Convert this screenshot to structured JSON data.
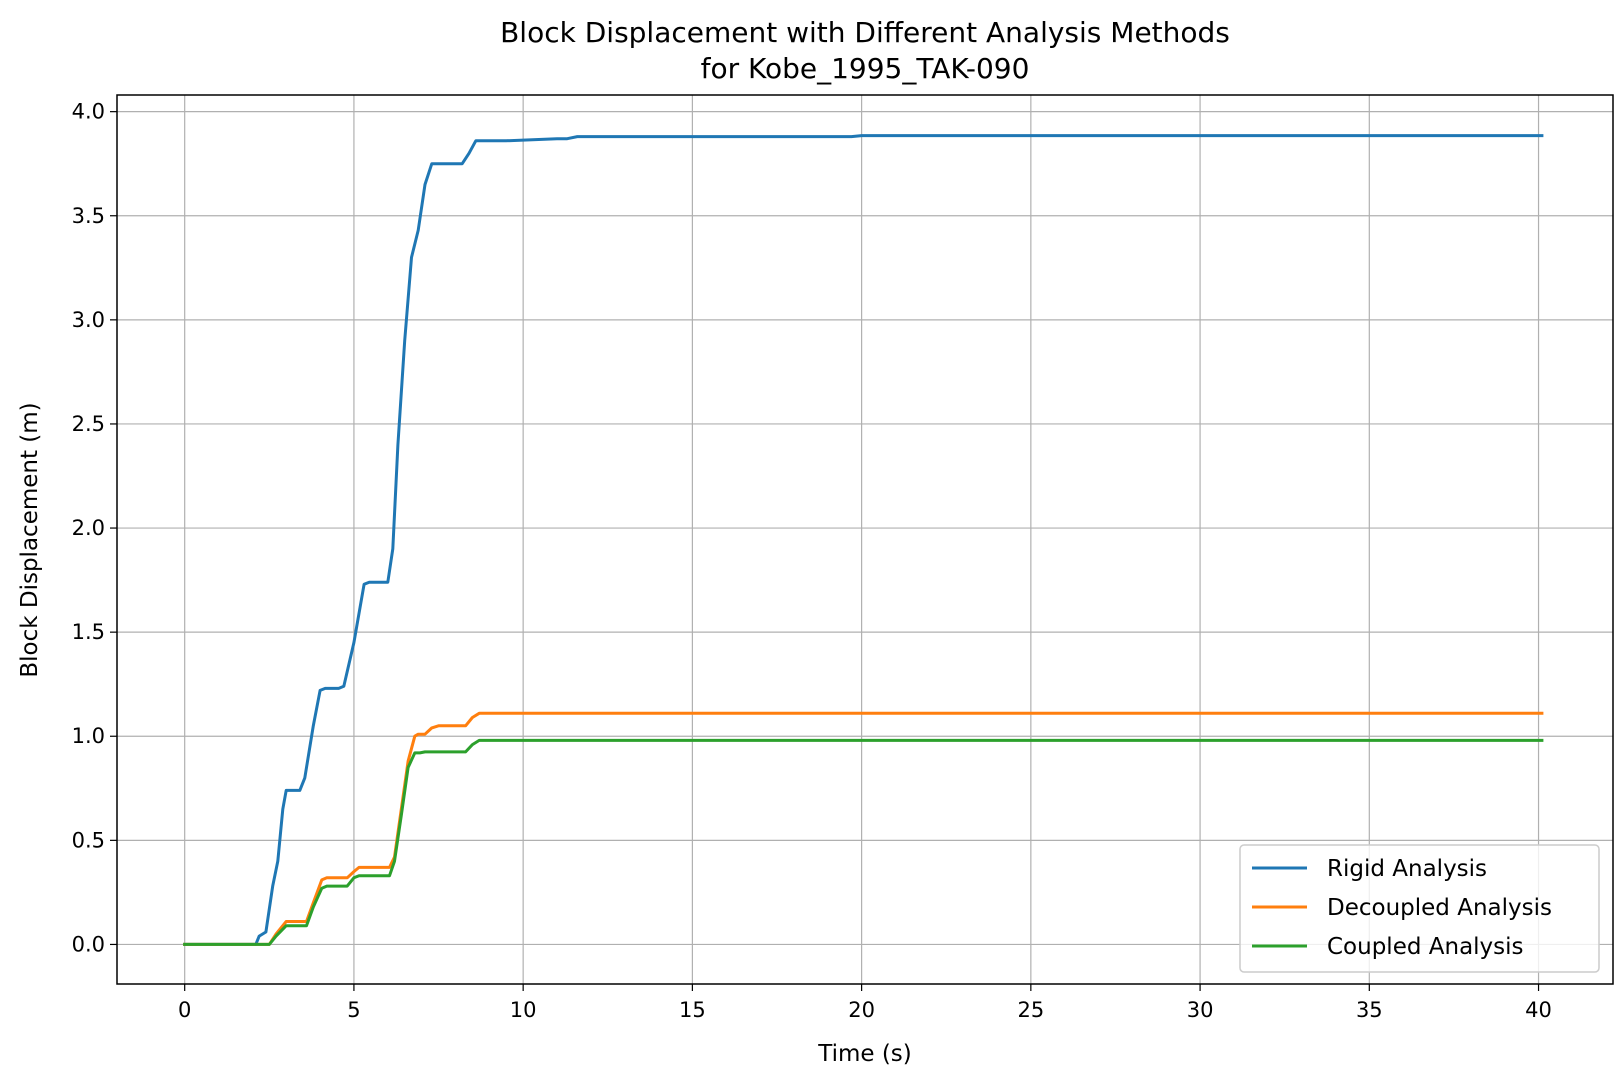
{
  "chart_data": {
    "type": "line",
    "title": "Block Displacement with Different Analysis Methods",
    "subtitle": "for Kobe_1995_TAK-090",
    "xlabel": "Time (s)",
    "ylabel": "Block Displacement (m)",
    "xlim": [
      -2.0,
      42.2
    ],
    "ylim": [
      -0.19,
      4.08
    ],
    "xticks": [
      0,
      5,
      10,
      15,
      20,
      25,
      30,
      35,
      40
    ],
    "xtick_labels": [
      "0",
      "5",
      "10",
      "15",
      "20",
      "25",
      "30",
      "35",
      "40"
    ],
    "yticks": [
      0.0,
      0.5,
      1.0,
      1.5,
      2.0,
      2.5,
      3.0,
      3.5,
      4.0
    ],
    "ytick_labels": [
      "0.0",
      "0.5",
      "1.0",
      "1.5",
      "2.0",
      "2.5",
      "3.0",
      "3.5",
      "4.0"
    ],
    "grid": true,
    "legend_position": "lower-right",
    "series": [
      {
        "name": "Rigid Analysis",
        "color": "#1f77b4",
        "x": [
          0,
          2.1,
          2.2,
          2.4,
          2.6,
          2.75,
          2.9,
          3.0,
          3.1,
          3.4,
          3.55,
          3.8,
          4.0,
          4.15,
          4.55,
          4.7,
          5.0,
          5.3,
          5.45,
          6.0,
          6.15,
          6.3,
          6.5,
          6.7,
          6.9,
          7.1,
          7.3,
          7.5,
          8.2,
          8.4,
          8.6,
          9.5,
          11.0,
          11.3,
          11.6,
          12.5,
          19.7,
          20.0,
          40.1
        ],
        "y": [
          0,
          0,
          0.04,
          0.06,
          0.28,
          0.4,
          0.65,
          0.74,
          0.74,
          0.74,
          0.8,
          1.05,
          1.22,
          1.23,
          1.23,
          1.24,
          1.45,
          1.73,
          1.74,
          1.74,
          1.9,
          2.4,
          2.9,
          3.3,
          3.43,
          3.65,
          3.75,
          3.75,
          3.75,
          3.8,
          3.86,
          3.86,
          3.87,
          3.87,
          3.88,
          3.88,
          3.88,
          3.885,
          3.885
        ]
      },
      {
        "name": "Decoupled Analysis",
        "color": "#ff7f0e",
        "x": [
          0,
          2.5,
          2.7,
          3.0,
          3.6,
          3.8,
          4.05,
          4.2,
          4.8,
          5.0,
          5.15,
          6.05,
          6.2,
          6.4,
          6.6,
          6.8,
          6.9,
          7.1,
          7.3,
          7.5,
          8.3,
          8.5,
          8.7,
          40.1
        ],
        "y": [
          0,
          0,
          0.05,
          0.11,
          0.11,
          0.2,
          0.31,
          0.32,
          0.32,
          0.35,
          0.37,
          0.37,
          0.42,
          0.65,
          0.88,
          1.0,
          1.01,
          1.01,
          1.04,
          1.05,
          1.05,
          1.09,
          1.11,
          1.11
        ]
      },
      {
        "name": "Coupled Analysis",
        "color": "#2ca02c",
        "x": [
          0,
          2.5,
          2.7,
          3.0,
          3.6,
          3.8,
          4.05,
          4.2,
          4.8,
          5.0,
          5.15,
          6.05,
          6.2,
          6.4,
          6.6,
          6.8,
          6.95,
          7.1,
          8.3,
          8.5,
          8.7,
          40.1
        ],
        "y": [
          0,
          0,
          0.04,
          0.09,
          0.09,
          0.18,
          0.27,
          0.28,
          0.28,
          0.32,
          0.33,
          0.33,
          0.4,
          0.62,
          0.85,
          0.92,
          0.92,
          0.925,
          0.925,
          0.96,
          0.98,
          0.98
        ]
      }
    ]
  }
}
